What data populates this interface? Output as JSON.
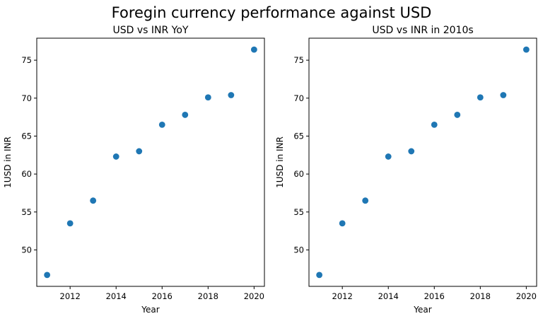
{
  "figure": {
    "suptitle": "Foregin currency performance against USD"
  },
  "chart_data": [
    {
      "type": "scatter",
      "title": "USD vs INR YoY",
      "xlabel": "Year",
      "ylabel": "1USD in INR",
      "x": [
        2011,
        2012,
        2013,
        2014,
        2015,
        2016,
        2017,
        2018,
        2019,
        2020
      ],
      "y": [
        46.7,
        53.5,
        56.5,
        62.3,
        63.0,
        66.5,
        67.8,
        70.1,
        70.4,
        76.4
      ],
      "xlim": [
        2010.55,
        2020.45
      ],
      "ylim": [
        45.2,
        77.9
      ],
      "xticks": [
        2012,
        2014,
        2016,
        2018,
        2020
      ],
      "yticks": [
        50,
        55,
        60,
        65,
        70,
        75
      ],
      "marker_color": "#1f77b4",
      "grid": false
    },
    {
      "type": "scatter",
      "title": "USD vs INR in 2010s",
      "xlabel": "Year",
      "ylabel": "1USD in INR",
      "x": [
        2011,
        2012,
        2013,
        2014,
        2015,
        2016,
        2017,
        2018,
        2019,
        2020
      ],
      "y": [
        46.7,
        53.5,
        56.5,
        62.3,
        63.0,
        66.5,
        67.8,
        70.1,
        70.4,
        76.4
      ],
      "xlim": [
        2010.55,
        2020.45
      ],
      "ylim": [
        45.2,
        77.9
      ],
      "xticks": [
        2012,
        2014,
        2016,
        2018,
        2020
      ],
      "yticks": [
        50,
        55,
        60,
        65,
        70,
        75
      ],
      "marker_color": "#1f77b4",
      "grid": false
    }
  ]
}
